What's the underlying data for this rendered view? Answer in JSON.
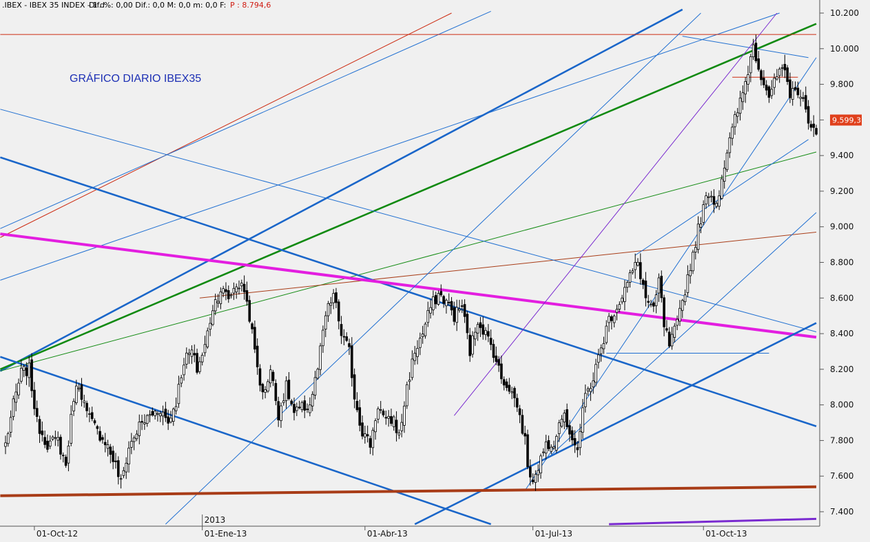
{
  "header": {
    "instrument": ".IBEX - IBEX 35 INDEX - 1 d",
    "stats": "Dif. %: 0,00  Dif.: 0,0  M: 0,0  m: 0,0  F:",
    "price_label": "P : 8.794,6"
  },
  "chart_title": "GRÁFICO DIARIO IBEX35",
  "colors": {
    "background": "#f0f0f0",
    "candle": "#000000",
    "blue_thin": "#1f6fd1",
    "blue_thick": "#1a66c9",
    "red": "#cc2a10",
    "green": "#118a11",
    "magenta": "#e31ee0",
    "brown": "#a83c17",
    "purple": "#7a2bd0",
    "price_tag": "#e0401c"
  },
  "chart_data": {
    "type": "candlestick",
    "title": "GRÁFICO DIARIO IBEX35",
    "ylim": [
      7330,
      10230
    ],
    "y_ticks": [
      10200,
      10000,
      9800,
      9600,
      9400,
      9200,
      9000,
      8800,
      8600,
      8400,
      8200,
      8000,
      7800,
      7600,
      7400
    ],
    "y_tick_labels": [
      "10.200",
      "10.000",
      "9.800",
      "9.600",
      "9.400",
      "9.200",
      "9.000",
      "8.800",
      "8.600",
      "8.400",
      "8.200",
      "8.000",
      "7.800",
      "7.600",
      "7.400"
    ],
    "x_ticks": [
      {
        "label": "01-Oct-12",
        "index": 11
      },
      {
        "label": "01-Ene-13",
        "index": 75
      },
      {
        "label": "01-Abr-13",
        "index": 137
      },
      {
        "label": "01-Jul-13",
        "index": 201
      },
      {
        "label": "01-Oct-13",
        "index": 266
      }
    ],
    "year_marker": {
      "label": "2013",
      "index": 75
    },
    "last_price": {
      "value": 9599.3,
      "label": "9.599,3"
    },
    "waypoints": [
      [
        0,
        7780
      ],
      [
        3,
        8000
      ],
      [
        6,
        8180
      ],
      [
        9,
        8200
      ],
      [
        12,
        7900
      ],
      [
        16,
        7780
      ],
      [
        20,
        7800
      ],
      [
        23,
        7660
      ],
      [
        26,
        8050
      ],
      [
        28,
        8120
      ],
      [
        31,
        7950
      ],
      [
        35,
        7850
      ],
      [
        38,
        7800
      ],
      [
        42,
        7660
      ],
      [
        44,
        7560
      ],
      [
        47,
        7760
      ],
      [
        51,
        7880
      ],
      [
        55,
        7940
      ],
      [
        59,
        7980
      ],
      [
        62,
        7900
      ],
      [
        65,
        8020
      ],
      [
        68,
        8250
      ],
      [
        71,
        8300
      ],
      [
        73,
        8200
      ],
      [
        76,
        8330
      ],
      [
        79,
        8550
      ],
      [
        82,
        8650
      ],
      [
        85,
        8600
      ],
      [
        88,
        8680
      ],
      [
        91,
        8650
      ],
      [
        93,
        8500
      ],
      [
        95,
        8300
      ],
      [
        98,
        8050
      ],
      [
        101,
        8200
      ],
      [
        104,
        7950
      ],
      [
        107,
        8100
      ],
      [
        110,
        7950
      ],
      [
        113,
        7980
      ],
      [
        116,
        8000
      ],
      [
        119,
        8200
      ],
      [
        122,
        8500
      ],
      [
        125,
        8620
      ],
      [
        128,
        8400
      ],
      [
        131,
        8300
      ],
      [
        133,
        8050
      ],
      [
        136,
        7850
      ],
      [
        139,
        7780
      ],
      [
        142,
        8000
      ],
      [
        145,
        7900
      ],
      [
        148,
        7920
      ],
      [
        150,
        7820
      ],
      [
        153,
        8100
      ],
      [
        156,
        8300
      ],
      [
        159,
        8400
      ],
      [
        162,
        8550
      ],
      [
        165,
        8620
      ],
      [
        168,
        8580
      ],
      [
        171,
        8500
      ],
      [
        174,
        8560
      ],
      [
        177,
        8300
      ],
      [
        180,
        8480
      ],
      [
        183,
        8400
      ],
      [
        186,
        8300
      ],
      [
        189,
        8150
      ],
      [
        192,
        8100
      ],
      [
        195,
        8000
      ],
      [
        198,
        7800
      ],
      [
        200,
        7560
      ],
      [
        203,
        7660
      ],
      [
        206,
        7780
      ],
      [
        209,
        7800
      ],
      [
        212,
        7950
      ],
      [
        215,
        7860
      ],
      [
        218,
        7750
      ],
      [
        221,
        8050
      ],
      [
        224,
        8150
      ],
      [
        227,
        8320
      ],
      [
        230,
        8480
      ],
      [
        233,
        8550
      ],
      [
        236,
        8650
      ],
      [
        239,
        8750
      ],
      [
        241,
        8800
      ],
      [
        244,
        8600
      ],
      [
        247,
        8520
      ],
      [
        249,
        8700
      ],
      [
        251,
        8450
      ],
      [
        253,
        8330
      ],
      [
        256,
        8450
      ],
      [
        259,
        8650
      ],
      [
        262,
        8850
      ],
      [
        265,
        9050
      ],
      [
        268,
        9200
      ],
      [
        271,
        9130
      ],
      [
        273,
        9280
      ],
      [
        275,
        9420
      ],
      [
        278,
        9600
      ],
      [
        281,
        9750
      ],
      [
        283,
        9880
      ],
      [
        285,
        10020
      ],
      [
        287,
        9900
      ],
      [
        289,
        9820
      ],
      [
        291,
        9740
      ],
      [
        293,
        9800
      ],
      [
        295,
        9880
      ],
      [
        297,
        9850
      ],
      [
        299,
        9720
      ],
      [
        301,
        9800
      ],
      [
        303,
        9730
      ],
      [
        305,
        9650
      ],
      [
        307,
        9580
      ],
      [
        309,
        9500
      ]
    ],
    "n_bars": 310,
    "trendlines": [
      {
        "style": "red",
        "from": [
          -2,
          8940
        ],
        "to": [
          170,
          10200
        ]
      },
      {
        "style": "blue_thin",
        "from": [
          -2,
          8990
        ],
        "to": [
          185,
          10210
        ]
      },
      {
        "style": "blue_thin",
        "from": [
          -2,
          8700
        ],
        "to": [
          295,
          10200
        ]
      },
      {
        "style": "blue_thick",
        "from": [
          -2,
          8190
        ],
        "to": [
          258,
          10220
        ]
      },
      {
        "style": "green_thick",
        "from": [
          -2,
          8200
        ],
        "to": [
          309,
          10140
        ]
      },
      {
        "style": "green",
        "from": [
          -2,
          8190
        ],
        "to": [
          309,
          9420
        ]
      },
      {
        "style": "brown_thin",
        "from": [
          74,
          8600
        ],
        "to": [
          309,
          8970
        ]
      },
      {
        "style": "red",
        "from": [
          -2,
          10080
        ],
        "to": [
          309,
          10080
        ]
      },
      {
        "style": "red",
        "from": [
          277,
          9840
        ],
        "to": [
          302,
          9840
        ]
      },
      {
        "style": "blue_thin",
        "from": [
          -2,
          9660
        ],
        "to": [
          309,
          8410
        ]
      },
      {
        "style": "blue_thick",
        "from": [
          -2,
          9390
        ],
        "to": [
          309,
          7880
        ]
      },
      {
        "style": "blue_thick",
        "from": [
          -2,
          8270
        ],
        "to": [
          185,
          7330
        ]
      },
      {
        "style": "magenta",
        "from": [
          -2,
          8960
        ],
        "to": [
          309,
          8380
        ]
      },
      {
        "style": "blue_thin",
        "from": [
          258,
          10070
        ],
        "to": [
          306,
          9950
        ]
      },
      {
        "style": "blue_thin",
        "from": [
          61,
          7330
        ],
        "to": [
          265,
          10200
        ]
      },
      {
        "style": "blue_thin",
        "from": [
          198,
          7520
        ],
        "to": [
          309,
          9950
        ]
      },
      {
        "style": "blue_thin",
        "from": [
          208,
          7720
        ],
        "to": [
          309,
          9080
        ]
      },
      {
        "style": "blue_thin",
        "from": [
          240,
          8840
        ],
        "to": [
          306,
          9490
        ]
      },
      {
        "style": "blue_thin",
        "from": [
          229,
          8290
        ],
        "to": [
          291,
          8290
        ]
      },
      {
        "style": "blue_thick",
        "from": [
          156,
          7330
        ],
        "to": [
          309,
          8460
        ]
      },
      {
        "style": "purple",
        "from": [
          171,
          7940
        ],
        "to": [
          294,
          10200
        ]
      },
      {
        "style": "brown_thick",
        "from": [
          -2,
          7490
        ],
        "to": [
          309,
          7540
        ]
      },
      {
        "style": "purple_thick",
        "from": [
          230,
          7330
        ],
        "to": [
          309,
          7360
        ]
      }
    ]
  }
}
